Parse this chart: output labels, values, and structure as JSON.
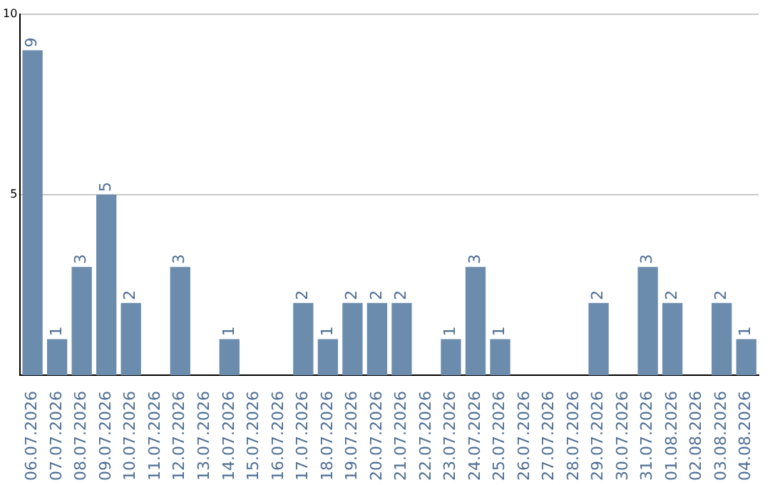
{
  "chart_data": {
    "type": "bar",
    "categories": [
      "06.07.2026",
      "07.07.2026",
      "08.07.2026",
      "09.07.2026",
      "10.07.2026",
      "11.07.2026",
      "12.07.2026",
      "13.07.2026",
      "14.07.2026",
      "15.07.2026",
      "16.07.2026",
      "17.07.2026",
      "18.07.2026",
      "19.07.2026",
      "20.07.2026",
      "21.07.2026",
      "22.07.2026",
      "23.07.2026",
      "24.07.2026",
      "25.07.2026",
      "26.07.2026",
      "27.07.2026",
      "28.07.2026",
      "29.07.2026",
      "30.07.2026",
      "31.07.2026",
      "01.08.2026",
      "02.08.2026",
      "03.08.2026",
      "04.08.2026"
    ],
    "values": [
      9,
      1,
      3,
      5,
      2,
      0,
      3,
      0,
      1,
      0,
      0,
      2,
      1,
      2,
      2,
      2,
      0,
      1,
      3,
      1,
      0,
      0,
      0,
      2,
      0,
      3,
      2,
      0,
      2,
      1
    ],
    "value_labels": [
      "9",
      "1",
      "3",
      "5",
      "2",
      null,
      "3",
      null,
      "1",
      null,
      null,
      "2",
      "1",
      "2",
      "2",
      "2",
      null,
      "1",
      "3",
      "1",
      null,
      null,
      null,
      "2",
      null,
      "3",
      "2",
      null,
      "2",
      "1"
    ],
    "color": "#6b8cad",
    "ylim": [
      0,
      10
    ],
    "yticks": [
      5,
      10
    ],
    "grid": "y",
    "legend": false
  }
}
